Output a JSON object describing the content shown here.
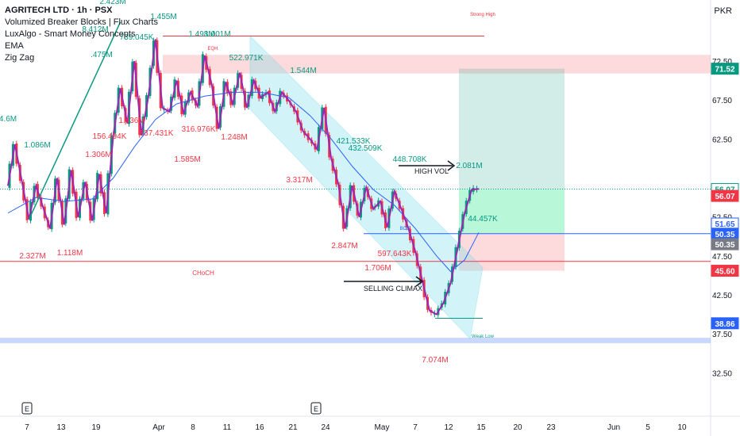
{
  "chart_data": {
    "type": "candlestick",
    "symbol_title": "AGRITECH LTD · 1h · PSX",
    "indicators": [
      "Volumized Breaker Blocks | Flux Charts",
      "LuxAlgo - Smart Money Concepts",
      "EMA",
      "Zig Zag"
    ],
    "currency": "PKR",
    "y_ticks": [
      "72.50",
      "67.50",
      "62.50",
      "52.50",
      "47.50",
      "42.50",
      "37.50",
      "32.50"
    ],
    "ylim": [
      30.5,
      78.5
    ],
    "x_ticks": [
      "7",
      "13",
      "19",
      "Apr",
      "8",
      "11",
      "16",
      "21",
      "24",
      "May",
      "7",
      "12",
      "15",
      "20",
      "23",
      "Jun",
      "5",
      "10"
    ],
    "earnings_marks": [
      "E",
      "E"
    ],
    "price_badges": [
      {
        "label": "71.52",
        "value": 71.52,
        "color": "#089981"
      },
      {
        "label": "56.07",
        "value": 56.07,
        "color": "#089981",
        "style": "outline"
      },
      {
        "label": "56.07",
        "value": 55.2,
        "color": "#f23645"
      },
      {
        "label": "51.65",
        "value": 51.65,
        "color": "#2962ff",
        "style": "outline"
      },
      {
        "label": "50.35",
        "value": 50.35,
        "color": "#2962ff"
      },
      {
        "label": "50.35",
        "value": 49.0,
        "color": "#787b86"
      },
      {
        "label": "45.60",
        "value": 45.6,
        "color": "#f23645"
      },
      {
        "label": "38.86",
        "value": 38.86,
        "color": "#2962ff"
      }
    ],
    "zigzag": [
      [
        0,
        56.5
      ],
      [
        1,
        61.8
      ],
      [
        3,
        52.2
      ],
      [
        4,
        56.5
      ],
      [
        6,
        51.0
      ],
      [
        7,
        57.5
      ],
      [
        8,
        51.5
      ],
      [
        9,
        58.5
      ],
      [
        10,
        52.5
      ],
      [
        11,
        57.0
      ],
      [
        12,
        52.0
      ],
      [
        13,
        58.0
      ],
      [
        14,
        53.0
      ],
      [
        15,
        63.0
      ],
      [
        16,
        69.0
      ],
      [
        17,
        64.5
      ],
      [
        18,
        72.5
      ],
      [
        19,
        63.0
      ],
      [
        20,
        68.0
      ],
      [
        21,
        75.3
      ],
      [
        22,
        66.5
      ],
      [
        23,
        66.0
      ],
      [
        24,
        70.0
      ],
      [
        25,
        65.8
      ],
      [
        26,
        68.5
      ],
      [
        27,
        66.7
      ],
      [
        28,
        73.2
      ],
      [
        29,
        69.5
      ],
      [
        30,
        63.8
      ],
      [
        31,
        69.8
      ],
      [
        32,
        67.0
      ],
      [
        33,
        71.0
      ],
      [
        34,
        66.5
      ],
      [
        35,
        70.0
      ],
      [
        36,
        67.8
      ],
      [
        37,
        68.5
      ],
      [
        38,
        66.0
      ],
      [
        39,
        68.5
      ],
      [
        40,
        67.4
      ],
      [
        41,
        66.0
      ],
      [
        42,
        63.5
      ],
      [
        43,
        62.5
      ],
      [
        44,
        61.2
      ],
      [
        45,
        66.5
      ],
      [
        46,
        60.0
      ],
      [
        47,
        56.8
      ],
      [
        48,
        51.0
      ],
      [
        49,
        56.5
      ],
      [
        50,
        52.5
      ],
      [
        51,
        56.3
      ],
      [
        52,
        53.5
      ],
      [
        53,
        54.5
      ],
      [
        54,
        51.2
      ],
      [
        55,
        55.8
      ],
      [
        56,
        53.5
      ],
      [
        57,
        51.0
      ],
      [
        58,
        48.0
      ],
      [
        59,
        44.2
      ],
      [
        60,
        40.5
      ],
      [
        61,
        40.0
      ],
      [
        62,
        41.5
      ],
      [
        63,
        44.0
      ],
      [
        64,
        48.5
      ],
      [
        65,
        53.0
      ],
      [
        66,
        56.0
      ],
      [
        67,
        56.1
      ]
    ],
    "ema": [
      [
        0,
        53.0
      ],
      [
        4,
        55.0
      ],
      [
        8,
        54.5
      ],
      [
        12,
        54.8
      ],
      [
        15,
        57.5
      ],
      [
        18,
        61.5
      ],
      [
        21,
        65.0
      ],
      [
        24,
        67.0
      ],
      [
        28,
        68.0
      ],
      [
        32,
        68.5
      ],
      [
        36,
        68.5
      ],
      [
        40,
        67.8
      ],
      [
        43,
        65.5
      ],
      [
        46,
        62.5
      ],
      [
        49,
        59.0
      ],
      [
        52,
        56.0
      ],
      [
        55,
        54.0
      ],
      [
        58,
        51.0
      ],
      [
        61,
        47.5
      ],
      [
        63,
        45.5
      ],
      [
        65,
        47.0
      ],
      [
        67,
        50.5
      ]
    ],
    "volume_labels_green": [
      "2.423M",
      "1.455M",
      "8.412M",
      "739.045K",
      "1.498M",
      "1.001M",
      ".475M",
      "522.971K",
      "1.544M",
      "4.6M",
      "1.086M",
      "421.533K",
      "432.509K",
      "448.708K",
      "2.081M",
      "44.457K"
    ],
    "volume_labels_red": [
      "156.494K",
      "1.436M",
      "837.431K",
      "316.976K",
      "1.248M",
      "1.306M",
      "1.585M",
      "3.317M",
      "2.847M",
      "597.643K",
      "1.706M",
      "2.327M",
      "1.118M",
      "7.074M"
    ],
    "annotations": [
      "HIGH VOL",
      "SELLING CLIMAX",
      "CHoCH",
      "Strong High",
      "Weak Low",
      "EQH",
      "BOS"
    ]
  }
}
